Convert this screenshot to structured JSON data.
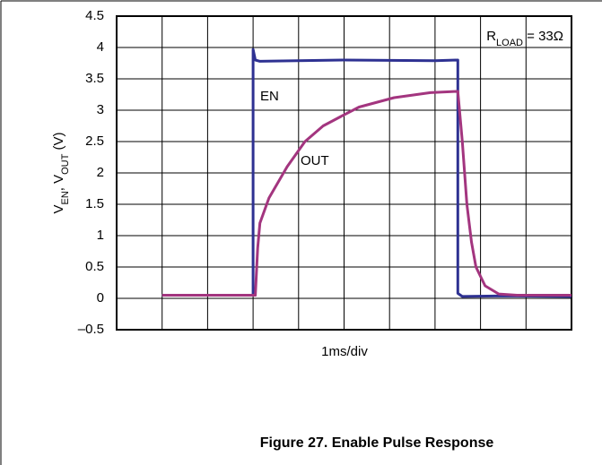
{
  "chart_data": {
    "type": "line",
    "title": "Figure 27. Enable Pulse Response",
    "xlabel": "1ms/div",
    "ylabel": [
      {
        "text": "V"
      },
      {
        "text": "EN",
        "sub": true
      },
      {
        "text": ", V"
      },
      {
        "text": "OUT",
        "sub": true
      },
      {
        "text": " (V)"
      }
    ],
    "annotation": [
      {
        "text": "R"
      },
      {
        "text": "LOAD",
        "sub": true
      },
      {
        "text": " = 33Ω"
      }
    ],
    "xlim": [
      0,
      10
    ],
    "xticks": [
      0,
      1,
      2,
      3,
      4,
      5,
      6,
      7,
      8,
      9,
      10
    ],
    "ylim": [
      -0.5,
      4.5
    ],
    "yticks": [
      {
        "value": -0.5,
        "label": "–0.5"
      },
      0,
      0.5,
      1,
      1.5,
      2,
      2.5,
      3,
      3.5,
      4,
      4.5
    ],
    "grid": true,
    "series": [
      {
        "name": "EN",
        "color": "#2e3192",
        "x": [
          1,
          3.0,
          3.0,
          3.05,
          3.15,
          5,
          7.0,
          7.5,
          7.5,
          7.6,
          8.5,
          10
        ],
        "values": [
          0.05,
          0.05,
          3.97,
          3.8,
          3.78,
          3.8,
          3.79,
          3.8,
          0.08,
          0.03,
          0.04,
          0.03
        ]
      },
      {
        "name": "OUT",
        "color": "#a3357f",
        "x": [
          1,
          3.05,
          3.1,
          3.15,
          3.35,
          3.75,
          4.14,
          4.54,
          4.93,
          5.33,
          6.1,
          6.9,
          7.5,
          7.6,
          7.7,
          7.8,
          7.9,
          8.1,
          8.4,
          8.8,
          10
        ],
        "values": [
          0.05,
          0.05,
          0.8,
          1.2,
          1.6,
          2.1,
          2.5,
          2.75,
          2.9,
          3.05,
          3.2,
          3.28,
          3.3,
          2.5,
          1.5,
          0.9,
          0.5,
          0.2,
          0.07,
          0.05,
          0.05
        ]
      }
    ]
  }
}
